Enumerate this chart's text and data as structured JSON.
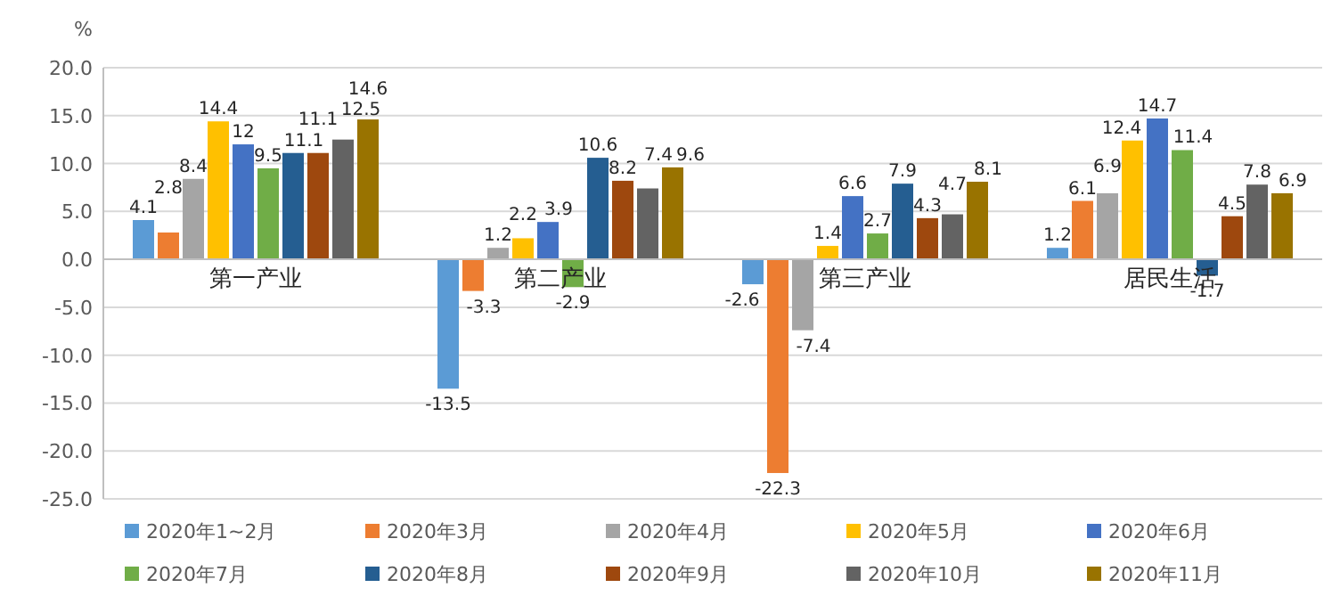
{
  "chart_data": {
    "type": "bar",
    "ylabel": "%",
    "categories": [
      "第一产业",
      "第二产业",
      "第三产业",
      "居民生活"
    ],
    "ylim": [
      -25,
      20
    ],
    "yticks": [
      {
        "value": -25,
        "label": "-25.0"
      },
      {
        "value": -20,
        "label": "-20.0"
      },
      {
        "value": -15,
        "label": "-15.0"
      },
      {
        "value": -10,
        "label": "-10.0"
      },
      {
        "value": -5,
        "label": "-5.0"
      },
      {
        "value": 0,
        "label": "0.0"
      },
      {
        "value": 5,
        "label": "5.0"
      },
      {
        "value": 10,
        "label": "10.0"
      },
      {
        "value": 15,
        "label": "15.0"
      },
      {
        "value": 20,
        "label": "20.0"
      }
    ],
    "grid": "y",
    "legend": "bottom",
    "data_labels": true,
    "series": [
      {
        "name": "2020年1~2月",
        "color": "#5b9bd5",
        "values": [
          4.1,
          -13.5,
          -2.6,
          1.2
        ]
      },
      {
        "name": "2020年3月",
        "color": "#ed7d31",
        "values": [
          2.8,
          -3.3,
          -22.3,
          6.1
        ]
      },
      {
        "name": "2020年4月",
        "color": "#a5a5a5",
        "values": [
          8.4,
          1.2,
          -7.4,
          6.9
        ]
      },
      {
        "name": "2020年5月",
        "color": "#ffc000",
        "values": [
          14.4,
          2.2,
          1.4,
          12.4
        ]
      },
      {
        "name": "2020年6月",
        "color": "#4472c4",
        "values": [
          12.0,
          3.9,
          6.6,
          14.7
        ]
      },
      {
        "name": "2020年7月",
        "color": "#70ad47",
        "values": [
          9.5,
          -2.9,
          2.7,
          11.4
        ]
      },
      {
        "name": "2020年8月",
        "color": "#255e91",
        "values": [
          11.1,
          10.6,
          7.9,
          -1.7
        ]
      },
      {
        "name": "2020年9月",
        "color": "#9e480e",
        "values": [
          11.1,
          8.2,
          4.3,
          4.5
        ]
      },
      {
        "name": "2020年10月",
        "color": "#636363",
        "values": [
          12.5,
          7.4,
          4.7,
          7.8
        ]
      },
      {
        "name": "2020年11月",
        "color": "#997300",
        "values": [
          14.6,
          9.6,
          8.1,
          6.9
        ]
      }
    ]
  }
}
